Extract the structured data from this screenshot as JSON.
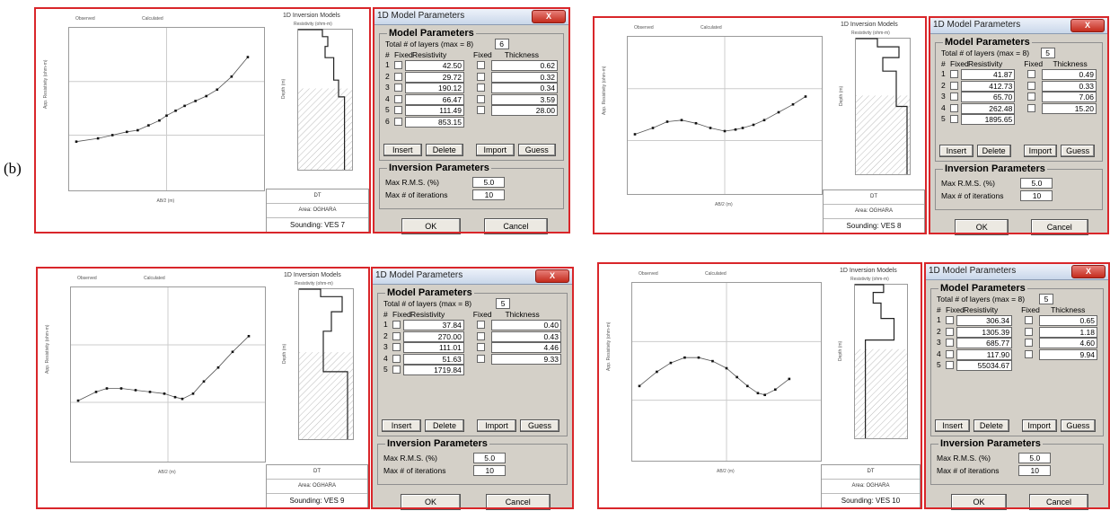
{
  "figure_label": "(b)",
  "panels": [
    {
      "legend": {
        "observed": "Observed",
        "calculated": "Calculated"
      },
      "model_title": "1D Inversion Models",
      "resistivity_axis": "Resistivity (ohm-m)",
      "depth_axis": "Depth (m)",
      "y_axis_label": "App. Resistivity (ohm-m)",
      "x_axis_label": "AB/2 (m)",
      "info": {
        "dt": "DT",
        "area": "Area: OGHARA",
        "sounding": "Sounding: VES 7"
      },
      "dialog": {
        "title": "1D Model Parameters",
        "close": "X",
        "model_group": "Model Parameters",
        "total_label": "Total # of layers (max = 8)",
        "total_value": "6",
        "headers": {
          "num": "#",
          "fixed": "Fixed",
          "resistivity": "Resistivity",
          "fixed2": "Fixed",
          "thickness": "Thickness"
        },
        "layers": [
          {
            "n": "1",
            "res": "42.50",
            "thk": "0.62"
          },
          {
            "n": "2",
            "res": "29.72",
            "thk": "0.32"
          },
          {
            "n": "3",
            "res": "190.12",
            "thk": "0.34"
          },
          {
            "n": "4",
            "res": "66.47",
            "thk": "3.59"
          },
          {
            "n": "5",
            "res": "111.49",
            "thk": "28.00"
          },
          {
            "n": "6",
            "res": "853.15",
            "thk": ""
          }
        ],
        "buttons": {
          "insert": "Insert",
          "delete": "Delete",
          "import": "Import",
          "guess": "Guess"
        },
        "inv_group": "Inversion Parameters",
        "rms_label": "Max R.M.S. (%)",
        "rms_value": "5.0",
        "iter_label": "Max # of iterations",
        "iter_value": "10",
        "ok": "OK",
        "cancel": "Cancel"
      }
    },
    {
      "legend": {
        "observed": "Observed",
        "calculated": "Calculated"
      },
      "model_title": "1D Inversion Models",
      "resistivity_axis": "Resistivity (ohm-m)",
      "depth_axis": "Depth (m)",
      "y_axis_label": "App. Resistivity (ohm-m)",
      "x_axis_label": "AB/2 (m)",
      "info": {
        "dt": "DT",
        "area": "Area: OGHARA",
        "sounding": "Sounding: VES 8"
      },
      "dialog": {
        "title": "1D Model Parameters",
        "close": "X",
        "model_group": "Model Parameters",
        "total_label": "Total # of layers (max = 8)",
        "total_value": "5",
        "headers": {
          "num": "#",
          "fixed": "Fixed",
          "resistivity": "Resistivity",
          "fixed2": "Fixed",
          "thickness": "Thickness"
        },
        "layers": [
          {
            "n": "1",
            "res": "41.87",
            "thk": "0.49"
          },
          {
            "n": "2",
            "res": "412.73",
            "thk": "0.33"
          },
          {
            "n": "3",
            "res": "65.70",
            "thk": "7.06"
          },
          {
            "n": "4",
            "res": "262.48",
            "thk": "15.20"
          },
          {
            "n": "5",
            "res": "1895.65",
            "thk": ""
          }
        ],
        "buttons": {
          "insert": "Insert",
          "delete": "Delete",
          "import": "Import",
          "guess": "Guess"
        },
        "inv_group": "Inversion Parameters",
        "rms_label": "Max R.M.S. (%)",
        "rms_value": "5.0",
        "iter_label": "Max # of iterations",
        "iter_value": "10",
        "ok": "OK",
        "cancel": "Cancel"
      }
    },
    {
      "legend": {
        "observed": "Observed",
        "calculated": "Calculated"
      },
      "model_title": "1D Inversion Models",
      "resistivity_axis": "Resistivity (ohm-m)",
      "depth_axis": "Depth (m)",
      "y_axis_label": "App. Resistivity (ohm-m)",
      "x_axis_label": "AB/2 (m)",
      "info": {
        "dt": "DT",
        "area": "Area: OGHARA",
        "sounding": "Sounding: VES 9"
      },
      "dialog": {
        "title": "1D Model Parameters",
        "close": "X",
        "model_group": "Model Parameters",
        "total_label": "Total # of layers (max = 8)",
        "total_value": "5",
        "headers": {
          "num": "#",
          "fixed": "Fixed",
          "resistivity": "Resistivity",
          "fixed2": "Fixed",
          "thickness": "Thickness"
        },
        "layers": [
          {
            "n": "1",
            "res": "37.84",
            "thk": "0.40"
          },
          {
            "n": "2",
            "res": "270.00",
            "thk": "0.43"
          },
          {
            "n": "3",
            "res": "111.01",
            "thk": "4.46"
          },
          {
            "n": "4",
            "res": "51.63",
            "thk": "9.33"
          },
          {
            "n": "5",
            "res": "1719.84",
            "thk": ""
          }
        ],
        "buttons": {
          "insert": "Insert",
          "delete": "Delete",
          "import": "Import",
          "guess": "Guess"
        },
        "inv_group": "Inversion Parameters",
        "rms_label": "Max R.M.S. (%)",
        "rms_value": "5.0",
        "iter_label": "Max # of iterations",
        "iter_value": "10",
        "ok": "OK",
        "cancel": "Cancel"
      }
    },
    {
      "legend": {
        "observed": "Observed",
        "calculated": "Calculated"
      },
      "model_title": "1D Inversion Models",
      "resistivity_axis": "Resistivity (ohm-m)",
      "depth_axis": "Depth (m)",
      "y_axis_label": "App. Resistivity (ohm-m)",
      "x_axis_label": "AB/2 (m)",
      "info": {
        "dt": "DT",
        "area": "Area: OGHARA",
        "sounding": "Sounding: VES 10"
      },
      "dialog": {
        "title": "1D Model Parameters",
        "close": "X",
        "model_group": "Model Parameters",
        "total_label": "Total # of layers (max = 8)",
        "total_value": "5",
        "headers": {
          "num": "#",
          "fixed": "Fixed",
          "resistivity": "Resistivity",
          "fixed2": "Fixed",
          "thickness": "Thickness"
        },
        "layers": [
          {
            "n": "1",
            "res": "306.34",
            "thk": "0.65"
          },
          {
            "n": "2",
            "res": "1305.39",
            "thk": "1.18"
          },
          {
            "n": "3",
            "res": "685.77",
            "thk": "4.60"
          },
          {
            "n": "4",
            "res": "117.90",
            "thk": "9.94"
          },
          {
            "n": "5",
            "res": "55034.67",
            "thk": ""
          }
        ],
        "buttons": {
          "insert": "Insert",
          "delete": "Delete",
          "import": "Import",
          "guess": "Guess"
        },
        "inv_group": "Inversion Parameters",
        "rms_label": "Max R.M.S. (%)",
        "rms_value": "5.0",
        "iter_label": "Max # of iterations",
        "iter_value": "10",
        "ok": "OK",
        "cancel": "Cancel"
      }
    }
  ]
}
